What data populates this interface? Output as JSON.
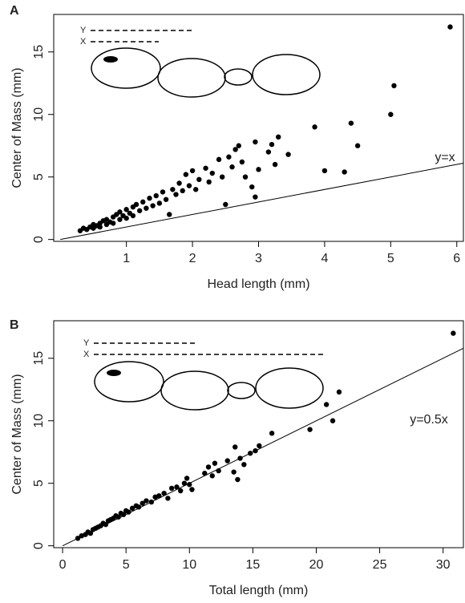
{
  "chart_data": [
    {
      "type": "scatter",
      "panel_label": "A",
      "xlabel": "Head length (mm)",
      "ylabel": "Center of Mass (mm)",
      "color": "#000000",
      "xlim": [
        -0.1,
        6.1
      ],
      "ylim": [
        -0.15,
        18
      ],
      "xticks": [
        1,
        2,
        3,
        4,
        5,
        6
      ],
      "yticks": [
        0,
        5,
        10,
        15
      ],
      "reference_line": {
        "label": "y=x",
        "slope": 1
      },
      "inset_labels": [
        "Y",
        "X"
      ],
      "x": [
        0.3,
        0.35,
        0.4,
        0.45,
        0.5,
        0.5,
        0.55,
        0.6,
        0.6,
        0.65,
        0.7,
        0.7,
        0.75,
        0.8,
        0.8,
        0.85,
        0.9,
        0.9,
        0.95,
        1.0,
        1.0,
        1.05,
        1.1,
        1.1,
        1.15,
        1.2,
        1.25,
        1.3,
        1.35,
        1.4,
        1.45,
        1.5,
        1.55,
        1.6,
        1.65,
        1.7,
        1.75,
        1.8,
        1.85,
        1.9,
        1.95,
        2.0,
        2.05,
        2.1,
        2.2,
        2.25,
        2.3,
        2.4,
        2.45,
        2.5,
        2.55,
        2.6,
        2.65,
        2.7,
        2.75,
        2.8,
        2.9,
        2.95,
        2.95,
        3.0,
        3.15,
        3.2,
        3.25,
        3.3,
        3.45,
        3.85,
        4.0,
        4.3,
        4.4,
        4.5,
        5.0,
        5.05,
        5.9
      ],
      "values": [
        0.7,
        0.9,
        0.8,
        1.0,
        1.2,
        0.9,
        1.1,
        1.3,
        1.0,
        1.5,
        1.2,
        1.6,
        1.4,
        1.8,
        1.3,
        2.0,
        1.6,
        2.2,
        1.9,
        2.4,
        1.7,
        2.1,
        2.6,
        1.9,
        2.8,
        2.3,
        3.0,
        2.5,
        3.3,
        2.7,
        3.5,
        2.9,
        3.8,
        3.2,
        2.0,
        4.0,
        3.6,
        4.5,
        3.9,
        5.2,
        4.3,
        5.5,
        4.0,
        4.8,
        5.7,
        4.6,
        5.3,
        6.4,
        5.0,
        2.8,
        6.6,
        5.8,
        7.2,
        7.5,
        6.2,
        5.0,
        4.2,
        3.4,
        7.8,
        5.6,
        7.0,
        7.6,
        6.0,
        8.2,
        6.8,
        9.0,
        5.5,
        5.4,
        9.3,
        7.5,
        10.0,
        12.3,
        17.0
      ]
    },
    {
      "type": "scatter",
      "panel_label": "B",
      "xlabel": "Total length (mm)",
      "ylabel": "Center of Mass (mm)",
      "color": "#000000",
      "xlim": [
        -0.7,
        31.6
      ],
      "ylim": [
        -0.15,
        18
      ],
      "xticks": [
        0,
        5,
        10,
        15,
        20,
        25,
        30
      ],
      "yticks": [
        0,
        5,
        10,
        15
      ],
      "reference_line": {
        "label": "y=0.5x",
        "slope": 0.5
      },
      "inset_labels": [
        "Y",
        "X"
      ],
      "x": [
        1.2,
        1.5,
        1.8,
        2,
        2.2,
        2.4,
        2.6,
        2.8,
        3,
        3.2,
        3.4,
        3.6,
        3.8,
        4,
        4.2,
        4.4,
        4.6,
        4.8,
        5,
        5.2,
        5.5,
        5.8,
        6,
        6.3,
        6.6,
        7,
        7.3,
        7.6,
        8,
        8.3,
        8.6,
        9,
        9.3,
        9.6,
        9.8,
        10,
        10.2,
        11.2,
        11.5,
        11.8,
        12,
        12.3,
        13,
        13.5,
        13.8,
        13.6,
        14,
        14.3,
        14.8,
        15.2,
        15.5,
        16.5,
        19.5,
        20.8,
        21.3,
        21.8,
        30.8
      ],
      "values": [
        0.6,
        0.8,
        0.9,
        1.1,
        1.0,
        1.3,
        1.4,
        1.5,
        1.6,
        1.8,
        1.7,
        2.0,
        2.1,
        2.2,
        2.4,
        2.3,
        2.6,
        2.5,
        2.8,
        2.7,
        3.0,
        3.2,
        3.1,
        3.4,
        3.6,
        3.5,
        3.9,
        4.0,
        4.2,
        3.8,
        4.6,
        4.7,
        4.4,
        5.0,
        5.4,
        4.9,
        4.5,
        5.8,
        6.3,
        5.6,
        6.6,
        6.0,
        6.8,
        5.9,
        5.3,
        7.9,
        7.0,
        6.5,
        7.4,
        7.6,
        8.0,
        9.0,
        9.3,
        11.3,
        10.0,
        12.3,
        17.0
      ]
    }
  ]
}
